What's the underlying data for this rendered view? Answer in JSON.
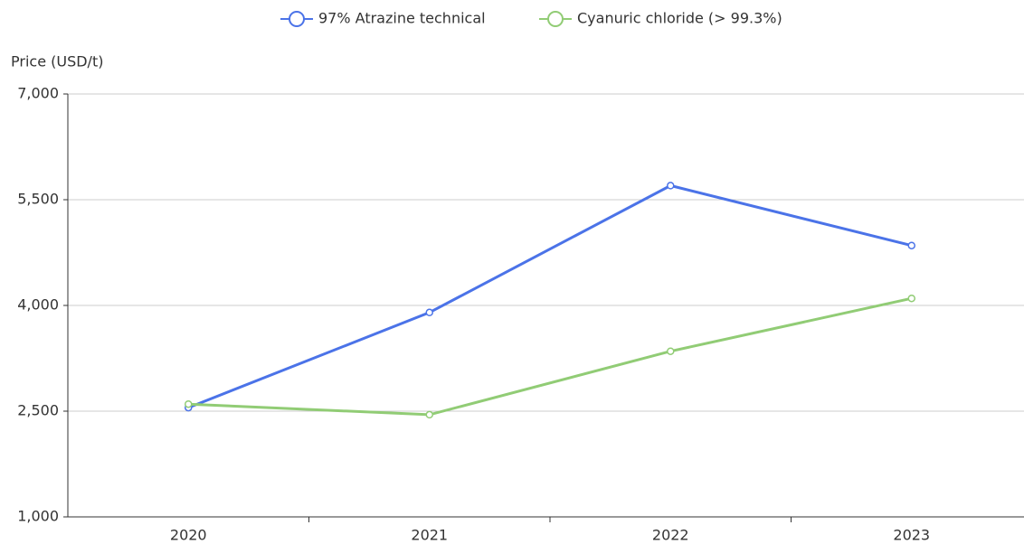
{
  "chart_data": {
    "type": "line",
    "y_label": "Price (USD/t)",
    "categories": [
      "2020",
      "2021",
      "2022",
      "2023"
    ],
    "series": [
      {
        "name": "97% Atrazine technical",
        "color": "#4b73e8",
        "values": [
          2550,
          3900,
          5700,
          4850
        ]
      },
      {
        "name": "Cyanuric chloride (> 99.3%)",
        "color": "#91cc75",
        "values": [
          2600,
          2450,
          3350,
          4100
        ]
      }
    ],
    "ylim": [
      1000,
      7000
    ],
    "yticks": [
      {
        "value": 1000,
        "label": "1,000"
      },
      {
        "value": 2500,
        "label": "2,500"
      },
      {
        "value": 4000,
        "label": "4,000"
      },
      {
        "value": 5500,
        "label": "5,500"
      },
      {
        "value": 7000,
        "label": "7,000"
      }
    ],
    "grid": true,
    "legend": "top"
  }
}
